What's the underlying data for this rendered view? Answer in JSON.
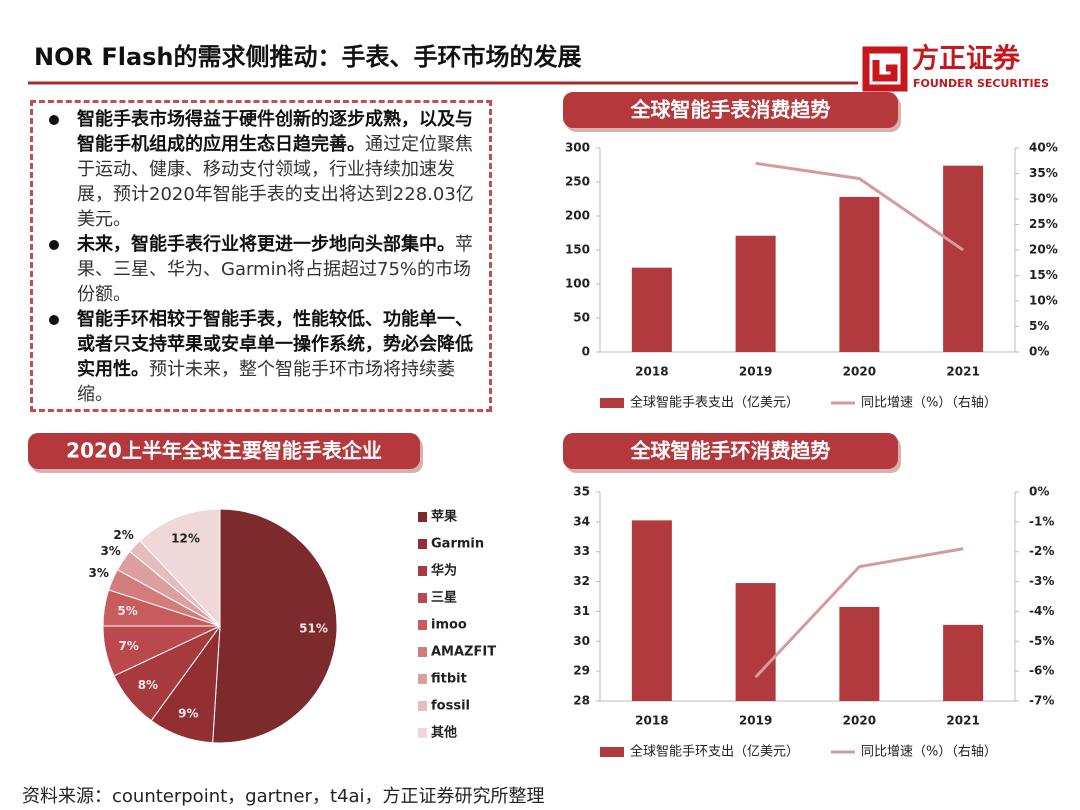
{
  "header": {
    "title": "NOR Flash的需求侧推动：手表、手环市场的发展",
    "logo": "方正证券",
    "logo_sub": "FOUNDER SECURITIES"
  },
  "bullets": [
    {
      "bold": "智能手表市场得益于硬件创新的逐步成熟，以及与智能手机组成的应用生态日趋完善。",
      "text": "通过定位聚焦于运动、健康、移动支付领域，行业持续加速发展，预计2020年智能手表的支出将达到228.03亿美元。"
    },
    {
      "bold": "未来，智能手表行业将更进一步地向头部集中。",
      "text": "苹果、三星、华为、Garmin将占据超过75%的市场份额。"
    },
    {
      "bold": "智能手环相较于智能手表，性能较低、功能单一、或者只支持苹果或安卓单一操作系统，势必会降低实用性。",
      "text": "预计未来，整个智能手环市场将持续萎缩。"
    }
  ],
  "chart_data": [
    {
      "type": "bar",
      "title": "全球智能手表消费趋势",
      "categories": [
        "2018",
        "2019",
        "2020",
        "2021"
      ],
      "series": [
        {
          "name": "全球智能手表支出（亿美元）",
          "color": "#b03a3d",
          "values": [
            124,
            171,
            228.03,
            274
          ]
        },
        {
          "name": "同比增速（%）（右轴）",
          "type": "line",
          "axis": "y2",
          "color": "#d79a9a",
          "values": [
            null,
            37,
            34,
            20
          ]
        }
      ],
      "ylim": [
        0,
        300
      ],
      "yticks": [
        0,
        50,
        100,
        150,
        200,
        250,
        300
      ],
      "y2lim": [
        0,
        40
      ],
      "y2ticks": [
        {
          "value": 0,
          "label": "0%"
        },
        {
          "value": 5,
          "label": "5%"
        },
        {
          "value": 10,
          "label": "10%"
        },
        {
          "value": 15,
          "label": "15%"
        },
        {
          "value": 20,
          "label": "20%"
        },
        {
          "value": 25,
          "label": "25%"
        },
        {
          "value": 30,
          "label": "30%"
        },
        {
          "value": 35,
          "label": "35%"
        },
        {
          "value": 40,
          "label": "40%"
        }
      ]
    },
    {
      "type": "bar",
      "title": "全球智能手环消费趋势",
      "categories": [
        "2018",
        "2019",
        "2020",
        "2021"
      ],
      "series": [
        {
          "name": "全球智能手环支出（亿美元）",
          "color": "#b03a3d",
          "values": [
            34.05,
            31.95,
            31.15,
            30.55
          ]
        },
        {
          "name": "同比增速（%）（右轴）",
          "type": "line",
          "axis": "y2",
          "color": "#d79a9a",
          "values": [
            null,
            -6.2,
            -2.5,
            -1.9
          ]
        }
      ],
      "ylim": [
        28,
        35
      ],
      "yticks": [
        28,
        29,
        30,
        31,
        32,
        33,
        34,
        35
      ],
      "y2lim": [
        -7,
        0
      ],
      "y2ticks": [
        {
          "value": -7,
          "label": "-7%"
        },
        {
          "value": -6,
          "label": "-6%"
        },
        {
          "value": -5,
          "label": "-5%"
        },
        {
          "value": -4,
          "label": "-4%"
        },
        {
          "value": -3,
          "label": "-3%"
        },
        {
          "value": -2,
          "label": "-2%"
        },
        {
          "value": -1,
          "label": "-1%"
        },
        {
          "value": 0,
          "label": "0%"
        }
      ]
    },
    {
      "type": "pie",
      "title": "2020上半年全球主要智能手表企业",
      "categories": [
        "苹果",
        "Garmin",
        "华为",
        "三星",
        "imoo",
        "AMAZFIT",
        "fitbit",
        "fossil",
        "其他"
      ],
      "values": [
        51,
        9,
        8,
        7,
        5,
        3,
        3,
        2,
        12
      ],
      "value_labels": [
        "51%",
        "9%",
        "8%",
        "7%",
        "5%",
        "3%",
        "3%",
        "2%",
        "12%"
      ],
      "colors": [
        "#7d2a2c",
        "#912f33",
        "#a63a3e",
        "#b9494c",
        "#c75b5d",
        "#d27c7c",
        "#dc9f9f",
        "#e6bdbd",
        "#f0d8d8"
      ]
    }
  ],
  "source": "资料来源：counterpoint，gartner，t4ai，方正证券研究所整理"
}
